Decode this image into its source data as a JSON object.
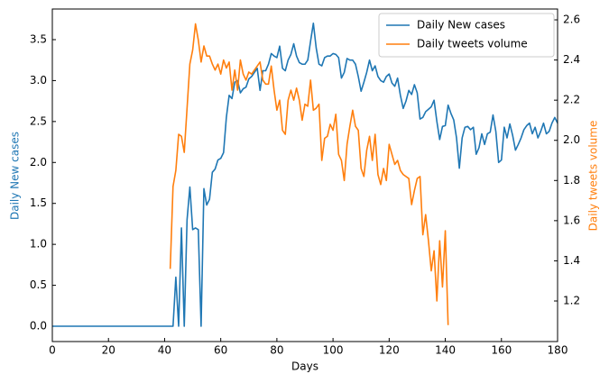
{
  "chart_data": {
    "type": "line",
    "xlabel": "Days",
    "ylabel": "Daily New cases",
    "y2label": "Daily tweets volume",
    "xlim": [
      0,
      180
    ],
    "xticks": [
      0,
      20,
      40,
      60,
      80,
      100,
      120,
      140,
      160,
      180
    ],
    "ylim": [
      -0.187,
      3.874
    ],
    "yticks": [
      {
        "value": 0,
        "label": "0.0"
      },
      0.5,
      {
        "value": 1,
        "label": "1.0"
      },
      1.5,
      {
        "value": 2,
        "label": "2.0"
      },
      2.5,
      {
        "value": 3,
        "label": "3.0"
      },
      3.5
    ],
    "y2lim": [
      0.998,
      2.654
    ],
    "y2ticks": [
      1.2,
      1.4,
      1.6,
      1.8,
      {
        "value": 2,
        "label": "2.0"
      },
      2.2,
      2.4,
      2.6
    ],
    "legend": "upper right",
    "x": [
      0,
      1,
      2,
      3,
      4,
      5,
      6,
      7,
      8,
      9,
      10,
      11,
      12,
      13,
      14,
      15,
      16,
      17,
      18,
      19,
      20,
      21,
      22,
      23,
      24,
      25,
      26,
      27,
      28,
      29,
      30,
      31,
      32,
      33,
      34,
      35,
      36,
      37,
      38,
      39,
      40,
      41,
      42,
      43,
      44,
      45,
      46,
      47,
      48,
      49,
      50,
      51,
      52,
      53,
      54,
      55,
      56,
      57,
      58,
      59,
      60,
      61,
      62,
      63,
      64,
      65,
      66,
      67,
      68,
      69,
      70,
      71,
      72,
      73,
      74,
      75,
      76,
      77,
      78,
      79,
      80,
      81,
      82,
      83,
      84,
      85,
      86,
      87,
      88,
      89,
      90,
      91,
      92,
      93,
      94,
      95,
      96,
      97,
      98,
      99,
      100,
      101,
      102,
      103,
      104,
      105,
      106,
      107,
      108,
      109,
      110,
      111,
      112,
      113,
      114,
      115,
      116,
      117,
      118,
      119,
      120,
      121,
      122,
      123,
      124,
      125,
      126,
      127,
      128,
      129,
      130,
      131,
      132,
      133,
      134,
      135,
      136,
      137,
      138,
      139,
      140,
      141,
      142,
      143,
      144,
      145,
      146,
      147,
      148,
      149,
      150,
      151,
      152,
      153,
      154,
      155,
      156,
      157,
      158,
      159,
      160,
      161,
      162,
      163,
      164,
      165,
      166,
      167,
      168,
      169,
      170,
      171,
      172,
      173,
      174,
      175,
      176,
      177,
      178,
      179,
      180
    ],
    "series": [
      {
        "name": "Daily New cases",
        "color": "#1f77b4",
        "axis": "y",
        "values": [
          0,
          0,
          0,
          0,
          0,
          0,
          0,
          0,
          0,
          0,
          0,
          0,
          0,
          0,
          0,
          0,
          0,
          0,
          0,
          0,
          0,
          0,
          0,
          0,
          0,
          0,
          0,
          0,
          0,
          0,
          0,
          0,
          0,
          0,
          0,
          0,
          0,
          0,
          0,
          0,
          0,
          0,
          0,
          0,
          0.6,
          0,
          1.2,
          0,
          1.3,
          1.7,
          1.18,
          1.2,
          1.18,
          0,
          1.68,
          1.48,
          1.55,
          1.88,
          1.92,
          2.03,
          2.05,
          2.12,
          2.55,
          2.82,
          2.78,
          2.98,
          3.0,
          2.85,
          2.9,
          2.92,
          3.02,
          3.05,
          3.1,
          3.15,
          2.88,
          3.12,
          3.12,
          3.2,
          3.33,
          3.3,
          3.28,
          3.42,
          3.15,
          3.12,
          3.25,
          3.32,
          3.45,
          3.3,
          3.22,
          3.2,
          3.2,
          3.25,
          3.48,
          3.7,
          3.4,
          3.2,
          3.18,
          3.28,
          3.3,
          3.3,
          3.33,
          3.32,
          3.28,
          3.03,
          3.1,
          3.27,
          3.25,
          3.25,
          3.2,
          3.05,
          2.87,
          2.98,
          3.1,
          3.25,
          3.12,
          3.18,
          3.05,
          3.0,
          2.98,
          3.05,
          3.08,
          2.97,
          2.93,
          3.03,
          2.82,
          2.66,
          2.75,
          2.88,
          2.83,
          2.95,
          2.85,
          2.53,
          2.55,
          2.62,
          2.65,
          2.68,
          2.76,
          2.5,
          2.28,
          2.44,
          2.45,
          2.7,
          2.6,
          2.52,
          2.3,
          1.93,
          2.3,
          2.43,
          2.44,
          2.4,
          2.43,
          2.1,
          2.18,
          2.35,
          2.22,
          2.35,
          2.37,
          2.58,
          2.38,
          2.0,
          2.03,
          2.43,
          2.3,
          2.47,
          2.33,
          2.15,
          2.22,
          2.3,
          2.4,
          2.45,
          2.48,
          2.35,
          2.43,
          2.3,
          2.38,
          2.48,
          2.35,
          2.38,
          2.48,
          2.55,
          2.48
        ]
      },
      {
        "name": "Daily tweets volume",
        "color": "#ff7f0e",
        "axis": "y2",
        "values": [
          null,
          null,
          null,
          null,
          null,
          null,
          null,
          null,
          null,
          null,
          null,
          null,
          null,
          null,
          null,
          null,
          null,
          null,
          null,
          null,
          null,
          null,
          null,
          null,
          null,
          null,
          null,
          null,
          null,
          null,
          null,
          null,
          null,
          null,
          null,
          null,
          null,
          null,
          null,
          null,
          null,
          null,
          1.36,
          1.77,
          1.85,
          2.03,
          2.02,
          1.94,
          2.16,
          2.38,
          2.45,
          2.58,
          2.5,
          2.39,
          2.47,
          2.42,
          2.42,
          2.38,
          2.35,
          2.38,
          2.33,
          2.4,
          2.36,
          2.39,
          2.25,
          2.35,
          2.25,
          2.4,
          2.33,
          2.3,
          2.34,
          2.33,
          2.35,
          2.37,
          2.39,
          2.3,
          2.28,
          2.28,
          2.37,
          2.25,
          2.15,
          2.2,
          2.05,
          2.03,
          2.2,
          2.25,
          2.2,
          2.26,
          2.2,
          2.1,
          2.18,
          2.17,
          2.3,
          2.15,
          2.16,
          2.18,
          1.9,
          2.01,
          2.02,
          2.08,
          2.05,
          2.13,
          1.93,
          1.9,
          1.8,
          1.98,
          2.07,
          2.15,
          2.07,
          2.05,
          1.86,
          1.82,
          1.95,
          2.02,
          1.9,
          2.03,
          1.83,
          1.78,
          1.86,
          1.8,
          1.98,
          1.93,
          1.88,
          1.9,
          1.85,
          1.83,
          1.82,
          1.81,
          1.68,
          1.75,
          1.81,
          1.82,
          1.53,
          1.63,
          1.5,
          1.35,
          1.45,
          1.2,
          1.5,
          1.27,
          1.55,
          1.08,
          null,
          null,
          null,
          null,
          null,
          null,
          null,
          null,
          null,
          null,
          null,
          null,
          null,
          null,
          null,
          null,
          null,
          null,
          null,
          null,
          null,
          null,
          null,
          null,
          null,
          null,
          null,
          null,
          null,
          null,
          null,
          null,
          null,
          null,
          null,
          null,
          null,
          null,
          null
        ]
      }
    ]
  }
}
